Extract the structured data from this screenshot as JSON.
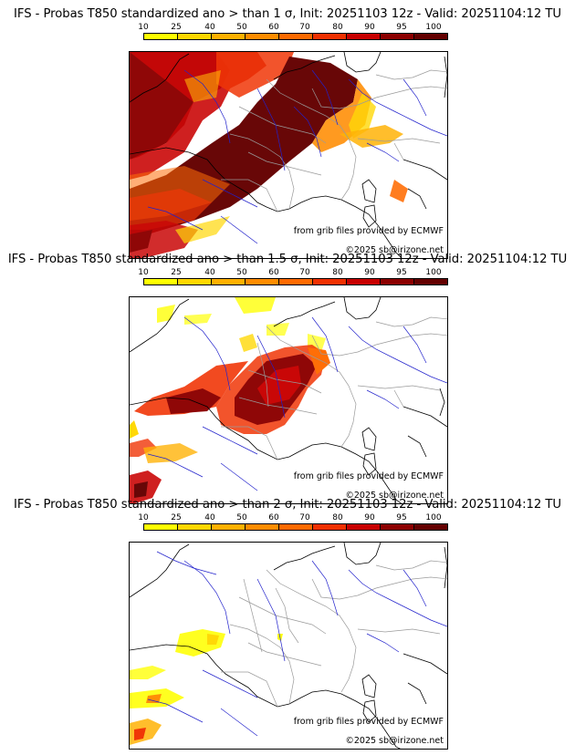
{
  "panels": [
    {
      "title": "IFS - Probas T850  standardized ano > than 1 σ, Init: 20251103 12z - Valid: 20251104:12 TU",
      "legend_labels": [
        "10",
        "25",
        "40",
        "50",
        "60",
        "70",
        "80",
        "90",
        "95",
        "100"
      ],
      "credit_source": "from grib files provided by ECMWF",
      "credit_copyright": "©2025 sb@irizone.net"
    },
    {
      "title": "IFS - Probas T850  standardized ano > than 1.5 σ, Init: 20251103 12z - Valid: 20251104:12 TU",
      "legend_labels": [
        "10",
        "25",
        "40",
        "50",
        "60",
        "70",
        "80",
        "90",
        "95",
        "100"
      ],
      "credit_source": "from grib files provided by ECMWF",
      "credit_copyright": "©2025 sb@irizone.net"
    },
    {
      "title": "IFS - Probas T850  standardized ano > than 2 σ, Init: 20251103 12z - Valid: 20251104:12 TU",
      "legend_labels": [
        "10",
        "25",
        "40",
        "50",
        "60",
        "70",
        "80",
        "90",
        "95",
        "100"
      ],
      "credit_source": "from grib files provided by ECMWF",
      "credit_copyright": "©2025 sb@irizone.net"
    }
  ],
  "legend_colors": [
    "#ffff00",
    "#ffd700",
    "#ffb000",
    "#ff8c00",
    "#ff6a00",
    "#f03000",
    "#c80000",
    "#8c0000",
    "#640000"
  ],
  "colors": {
    "coast": "#000000",
    "border": "#9a9a9a",
    "river": "#2222cc"
  }
}
